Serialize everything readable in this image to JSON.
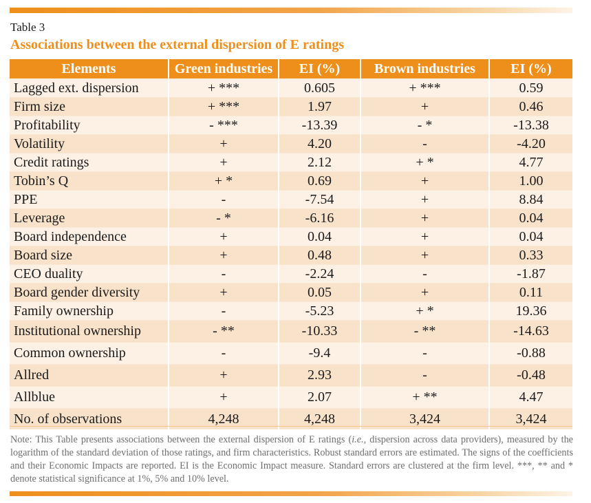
{
  "caption": "Table 3",
  "title": "Associations between the external dispersion of E ratings",
  "columns": [
    "Elements",
    "Green industries",
    "EI (%)",
    "Brown industries",
    "EI (%)"
  ],
  "rows": [
    [
      "Lagged ext. dispersion",
      "+ ***",
      "0.605",
      "+ ***",
      "0.59"
    ],
    [
      "Firm size",
      "+ ***",
      "1.97",
      "+",
      "0.46"
    ],
    [
      "Profitability",
      "- ***",
      "-13.39",
      "- *",
      "-13.38"
    ],
    [
      "Volatility",
      "+",
      "4.20",
      "-",
      "-4.20"
    ],
    [
      "Credit ratings",
      "+",
      "2.12",
      "+ *",
      "4.77"
    ],
    [
      "Tobin’s Q",
      "+ *",
      "0.69",
      "+",
      "1.00"
    ],
    [
      "PPE",
      "-",
      "-7.54",
      "+",
      "8.84"
    ],
    [
      "Leverage",
      "- *",
      "-6.16",
      "+",
      "0.04"
    ],
    [
      "Board independence",
      "+",
      "0.04",
      "+",
      "0.04"
    ],
    [
      "Board size",
      "+",
      "0.48",
      "+",
      "0.33"
    ],
    [
      "CEO duality",
      "-",
      "-2.24",
      "-",
      "-1.87"
    ],
    [
      "Board gender diversity",
      "+",
      "0.05",
      "+",
      "0.11"
    ],
    [
      "Family ownership",
      "-",
      "-5.23",
      "+ *",
      "19.36"
    ],
    [
      "Institutional ownership",
      "- **",
      "-10.33",
      "- **",
      "-14.63"
    ],
    [
      "Common ownership",
      "-",
      "-9.4",
      "-",
      "-0.88"
    ],
    [
      "Allred",
      "+",
      "2.93",
      "-",
      "-0.48"
    ],
    [
      "Allblue",
      "+",
      "2.07",
      "+ **",
      "4.47"
    ],
    [
      "No. of observations",
      "4,248",
      "4,248",
      "3,424",
      "3,424"
    ]
  ],
  "note_parts": {
    "a": "Note: This Table presents associations between the external dispersion of E ratings (",
    "ie": "i.e.",
    "b": ", dispersion across data providers), measured by the logarithm of the standard deviation of those ratings, and firm characteristics. Robust standard errors are estimated. The signs of the coefficients and their Economic Impacts are reported. EI is the Economic Impact measure. Standard errors are clustered at the firm level. ***, ** and * denote statistical significance at 1%, 5% and 10% level."
  }
}
